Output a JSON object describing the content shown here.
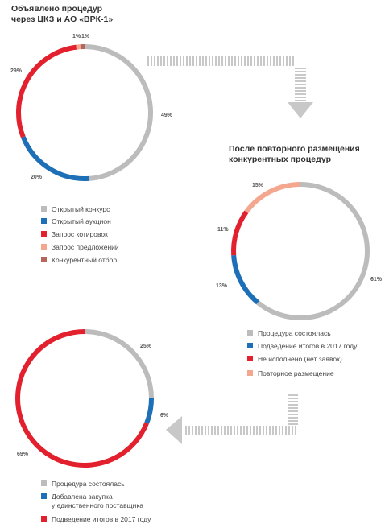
{
  "colors": {
    "grey": "#bcbcbc",
    "blue": "#1d6fb8",
    "red": "#e3202e",
    "pink": "#f4a68f",
    "brown": "#b5665a",
    "arrow": "#c8c8c8"
  },
  "chart_data": [
    {
      "type": "pie",
      "title": "Объявлено процедур через ЦКЗ и АО «ВРК-1»",
      "title_lines": [
        "Объявлено процедур",
        "через ЦКЗ и АО «ВРК-1»"
      ],
      "series": [
        {
          "name": "Открытый конкурс",
          "value": 49,
          "label": "49%",
          "color": "#bcbcbc"
        },
        {
          "name": "Открытый аукцион",
          "value": 20,
          "label": "20%",
          "color": "#1d6fb8"
        },
        {
          "name": "Запрос котировок",
          "value": 29,
          "label": "29%",
          "color": "#e3202e"
        },
        {
          "name": "Запрос предложений",
          "value": 1,
          "label": "1%",
          "color": "#f4a68f"
        },
        {
          "name": "Конкурентный отбор",
          "value": 1,
          "label": "1%",
          "color": "#b5665a"
        }
      ]
    },
    {
      "type": "pie",
      "title": "После повторного размещения конкурентных процедур",
      "title_lines": [
        "После повторного размещения",
        "конкурентных процедур"
      ],
      "series": [
        {
          "name": "Процедура состоялась",
          "value": 61,
          "label": "61%",
          "color": "#bcbcbc"
        },
        {
          "name": "Подведение итогов в 2017 году",
          "value": 13,
          "label": "13%",
          "color": "#1d6fb8"
        },
        {
          "name": "Не исполнено (нет заявок)",
          "value": 11,
          "label": "11%",
          "color": "#e3202e"
        },
        {
          "name": "Повторное размещение",
          "value": 15,
          "label": "15%",
          "color": "#f4a68f"
        }
      ]
    },
    {
      "type": "pie",
      "title": "",
      "series": [
        {
          "name": "Процедура состоялась",
          "value": 25,
          "label": "25%",
          "color": "#bcbcbc"
        },
        {
          "name": "Добавлена закупка у единственного поставщика",
          "name_lines": [
            "Добавлена закупка",
            "у единственного поставщика"
          ],
          "value": 6,
          "label": "6%",
          "color": "#1d6fb8"
        },
        {
          "name": "Подведение итогов в 2017 году",
          "value": 69,
          "label": "69%",
          "color": "#e3202e"
        }
      ]
    }
  ]
}
